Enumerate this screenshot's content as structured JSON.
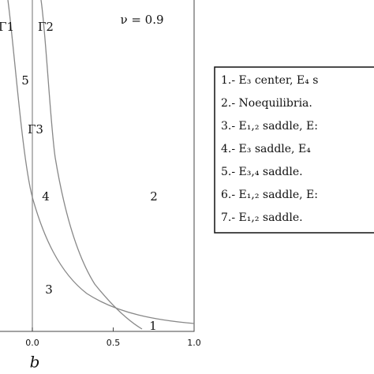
{
  "chart_data": {
    "type": "line",
    "xlabel": "b",
    "xlim": [
      -0.2,
      1.0
    ],
    "xticks": [
      {
        "value": 0,
        "label": "0.0"
      },
      0.5,
      {
        "value": 1,
        "label": "1.0"
      }
    ],
    "annotations": {
      "parameter": "ν = 0.9",
      "curves": [
        "Γ1",
        "Γ2",
        "Γ3"
      ],
      "regions": [
        "5",
        "4",
        "2",
        "3",
        "1"
      ]
    },
    "legend": [
      "1.- E₃ center, E₄ s",
      "2.- Noequilibria.",
      "3.- E₁,₂ saddle, E:",
      "4.- E₃ saddle, E₄",
      "5.- E₃,₄ saddle.",
      "6.- E₁,₂ saddle, E:",
      "7.- E₁,₂ saddle."
    ]
  }
}
